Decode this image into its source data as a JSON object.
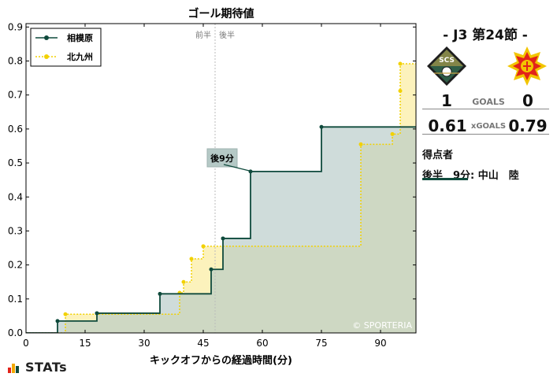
{
  "chart_data": {
    "type": "line",
    "title": "ゴール期待値",
    "xlabel": "キックオフからの経過時間(分)",
    "ylabel": "",
    "xlim": [
      0,
      99
    ],
    "ylim": [
      0,
      0.91
    ],
    "x_ticks": [
      0,
      15,
      30,
      45,
      60,
      75,
      90
    ],
    "y_ticks": [
      0.0,
      0.1,
      0.2,
      0.3,
      0.4,
      0.5,
      0.6,
      0.7,
      0.8,
      0.9
    ],
    "y_tick_labels": [
      "0.0",
      "0.1",
      "0.2",
      "0.3",
      "0.4",
      "0.5",
      "0.6",
      "0.7",
      "0.8",
      "0.9"
    ],
    "series": [
      {
        "name": "相模原",
        "color": "#0f4a3c",
        "fill": "#b5c9c6",
        "line_style": "solid",
        "points": [
          {
            "x": 8,
            "y": 0.035
          },
          {
            "x": 18,
            "y": 0.058
          },
          {
            "x": 34,
            "y": 0.115
          },
          {
            "x": 47,
            "y": 0.187
          },
          {
            "x": 50,
            "y": 0.278
          },
          {
            "x": 57,
            "y": 0.475
          },
          {
            "x": 75,
            "y": 0.606
          },
          {
            "x": 102,
            "y": 0.606
          }
        ]
      },
      {
        "name": "北九州",
        "color": "#f2d100",
        "fill": "#fbf0b0",
        "line_style": "dotted",
        "points": [
          {
            "x": 10,
            "y": 0.055
          },
          {
            "x": 39,
            "y": 0.118
          },
          {
            "x": 40,
            "y": 0.15
          },
          {
            "x": 42,
            "y": 0.218
          },
          {
            "x": 45,
            "y": 0.255
          },
          {
            "x": 85,
            "y": 0.555
          },
          {
            "x": 93,
            "y": 0.585
          },
          {
            "x": 95,
            "y": 0.712
          },
          {
            "x": 95,
            "y": 0.792
          },
          {
            "x": 102,
            "y": 0.792
          }
        ]
      }
    ],
    "half_divider": {
      "x": 48,
      "left_label": "前半",
      "right_label": "後半"
    },
    "goal_annotation": {
      "label": "後9分",
      "x": 57,
      "y": 0.475
    },
    "watermark": "© SPORTERIA",
    "legend_position": "top-left",
    "grid": false
  },
  "match": {
    "title": "- J3 第24節 -",
    "home_logo_text": "SCS",
    "home_goals": "1",
    "away_goals": "0",
    "goals_label": "GOALS",
    "home_xg": "0.61",
    "away_xg": "0.79",
    "xg_label": "xGOALS",
    "scorers_title": "得点者",
    "scorer_line": "後半　9分: 中山　陸",
    "colors": {
      "home": "#0f4a3c",
      "away": "#f2d100",
      "away_accent": "#e2231a"
    }
  },
  "branding": {
    "stats": "STATs"
  }
}
